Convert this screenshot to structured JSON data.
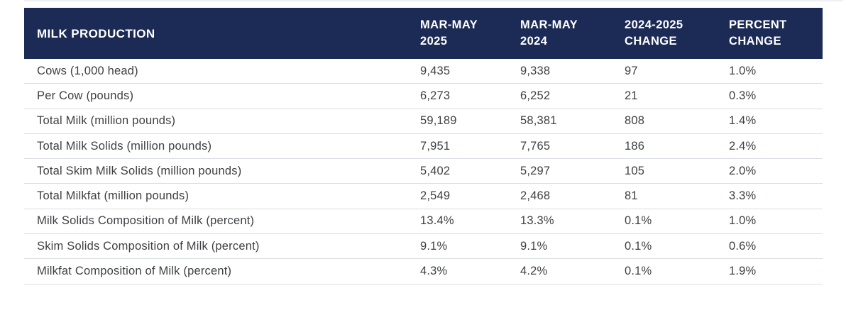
{
  "chart_data": {
    "type": "table",
    "title": "MILK PRODUCTION",
    "columns": [
      "MILK PRODUCTION",
      "MAR-MAY 2025",
      "MAR-MAY 2024",
      "2024-2025 CHANGE",
      "PERCENT CHANGE"
    ],
    "rows": [
      [
        "Cows (1,000 head)",
        "9,435",
        "9,338",
        "97",
        "1.0%"
      ],
      [
        "Per Cow (pounds)",
        "6,273",
        "6,252",
        "21",
        "0.3%"
      ],
      [
        "Total Milk (million pounds)",
        "59,189",
        "58,381",
        "808",
        "1.4%"
      ],
      [
        "Total Milk Solids (million pounds)",
        "7,951",
        "7,765",
        "186",
        "2.4%"
      ],
      [
        "Total Skim Milk Solids (million pounds)",
        "5,402",
        "5,297",
        "105",
        "2.0%"
      ],
      [
        "Total Milkfat (million pounds)",
        "2,549",
        "2,468",
        "81",
        "3.3%"
      ],
      [
        "Milk Solids Composition of Milk (percent)",
        "13.4%",
        "13.3%",
        "0.1%",
        "1.0%"
      ],
      [
        "Skim Solids Composition of Milk (percent)",
        "9.1%",
        "9.1%",
        "0.1%",
        "0.6%"
      ],
      [
        "Milkfat Composition of Milk (percent)",
        "4.3%",
        "4.2%",
        "0.1%",
        "1.9%"
      ]
    ],
    "layout": {
      "header_bg": "#1c2b55",
      "header_text_color": "#ffffff",
      "body_text_color": "#3e4043",
      "divider_color": "#d9dde3",
      "grid": "horizontal-dividers-only",
      "legend": "none"
    }
  }
}
